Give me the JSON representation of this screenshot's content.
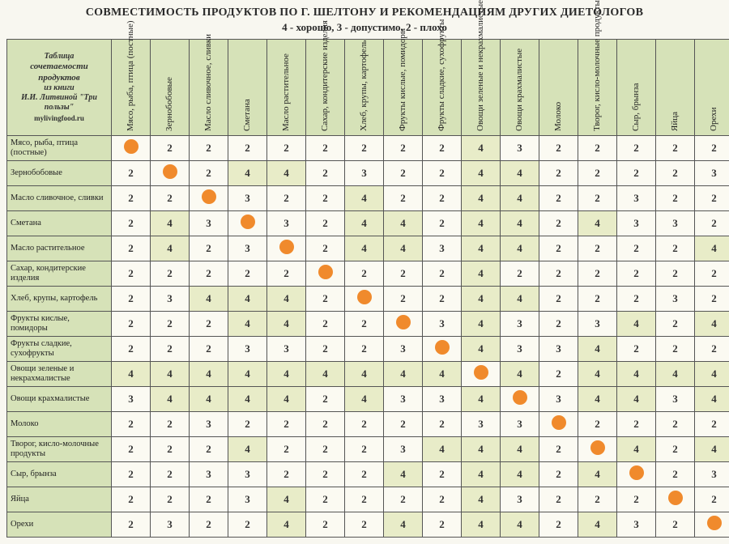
{
  "title": "СОВМЕСТИМОСТЬ ПРОДУКТОВ ПО Г. ШЕЛТОНУ И РЕКОМЕНДАЦИЯМ ДРУГИХ ДИЕТОЛОГОВ",
  "subtitle": "4 - хорошо, 3 - допустимо, 2 - плохо",
  "corner": {
    "ln1": "Таблица",
    "ln2": "сочетаемости",
    "ln3": "продуктов",
    "ln4": "из книги",
    "ln5": "И.И. Литвиной \"Три пользы\"",
    "ln6": "mylivingfood.ru"
  },
  "columns": [
    "Мясо, рыба, птица (постные)",
    "Зернобобовые",
    "Масло сливочное, сливки",
    "Сметана",
    "Масло растительное",
    "Сахар, кондитерские изделия",
    "Хлеб, крупы, картофель",
    "Фрукты кислые, помидоры",
    "Фрукты сладкие, сухофрукты",
    "Овощи зеленые и некрахмалистые",
    "Овощи крахмалистые",
    "Молоко",
    "Творог, кисло-молочные продукты",
    "Сыр, брынза",
    "Яйца",
    "Орехи"
  ],
  "rows": [
    "Мясо, рыба, птица (постные)",
    "Зернобобовые",
    "Масло сливочное, сливки",
    "Сметана",
    "Масло растительное",
    "Сахар, кондитерские изделия",
    "Хлеб, крупы, картофель",
    "Фрукты кислые, помидоры",
    "Фрукты сладкие, сухофрукты",
    "Овощи зеленые и некрахмалистые",
    "Овощи крахмалистые",
    "Молоко",
    "Творог, кисло-молочные продукты",
    "Сыр, брынза",
    "Яйца",
    "Орехи"
  ],
  "grid": [
    [
      "•",
      "2",
      "2",
      "2",
      "2",
      "2",
      "2",
      "2",
      "2",
      "4",
      "3",
      "2",
      "2",
      "2",
      "2",
      "2"
    ],
    [
      "2",
      "•",
      "2",
      "4",
      "4",
      "2",
      "3",
      "2",
      "2",
      "4",
      "4",
      "2",
      "2",
      "2",
      "2",
      "3"
    ],
    [
      "2",
      "2",
      "•",
      "3",
      "2",
      "2",
      "4",
      "2",
      "2",
      "4",
      "4",
      "2",
      "2",
      "3",
      "2",
      "2"
    ],
    [
      "2",
      "4",
      "3",
      "•",
      "3",
      "2",
      "4",
      "4",
      "2",
      "4",
      "4",
      "2",
      "4",
      "3",
      "3",
      "2"
    ],
    [
      "2",
      "4",
      "2",
      "3",
      "•",
      "2",
      "4",
      "4",
      "3",
      "4",
      "4",
      "2",
      "2",
      "2",
      "2",
      "4"
    ],
    [
      "2",
      "2",
      "2",
      "2",
      "2",
      "•",
      "2",
      "2",
      "2",
      "4",
      "2",
      "2",
      "2",
      "2",
      "2",
      "2"
    ],
    [
      "2",
      "3",
      "4",
      "4",
      "4",
      "2",
      "•",
      "2",
      "2",
      "4",
      "4",
      "2",
      "2",
      "2",
      "3",
      "2"
    ],
    [
      "2",
      "2",
      "2",
      "4",
      "4",
      "2",
      "2",
      "•",
      "3",
      "4",
      "3",
      "2",
      "3",
      "4",
      "2",
      "4"
    ],
    [
      "2",
      "2",
      "2",
      "3",
      "3",
      "2",
      "2",
      "3",
      "•",
      "4",
      "3",
      "3",
      "4",
      "2",
      "2",
      "2"
    ],
    [
      "4",
      "4",
      "4",
      "4",
      "4",
      "4",
      "4",
      "4",
      "4",
      "•",
      "4",
      "2",
      "4",
      "4",
      "4",
      "4"
    ],
    [
      "3",
      "4",
      "4",
      "4",
      "4",
      "2",
      "4",
      "3",
      "3",
      "4",
      "•",
      "3",
      "4",
      "4",
      "3",
      "4"
    ],
    [
      "2",
      "2",
      "3",
      "2",
      "2",
      "2",
      "2",
      "2",
      "2",
      "3",
      "3",
      "•",
      "2",
      "2",
      "2",
      "2"
    ],
    [
      "2",
      "2",
      "2",
      "4",
      "2",
      "2",
      "2",
      "3",
      "4",
      "4",
      "4",
      "2",
      "•",
      "4",
      "2",
      "4"
    ],
    [
      "2",
      "2",
      "3",
      "3",
      "2",
      "2",
      "2",
      "4",
      "2",
      "4",
      "4",
      "2",
      "4",
      "•",
      "2",
      "3"
    ],
    [
      "2",
      "2",
      "2",
      "3",
      "4",
      "2",
      "2",
      "2",
      "2",
      "4",
      "3",
      "2",
      "2",
      "2",
      "•",
      "2"
    ],
    [
      "2",
      "3",
      "2",
      "2",
      "4",
      "2",
      "2",
      "4",
      "2",
      "4",
      "4",
      "2",
      "4",
      "3",
      "2",
      "•"
    ]
  ],
  "highlight_value": "4",
  "colors": {
    "header_bg": "#d6e2b8",
    "cell_bg": "#fbfaf2",
    "highlight_bg": "#e8ecc8",
    "dot": "#f08a2c",
    "border": "#555"
  }
}
